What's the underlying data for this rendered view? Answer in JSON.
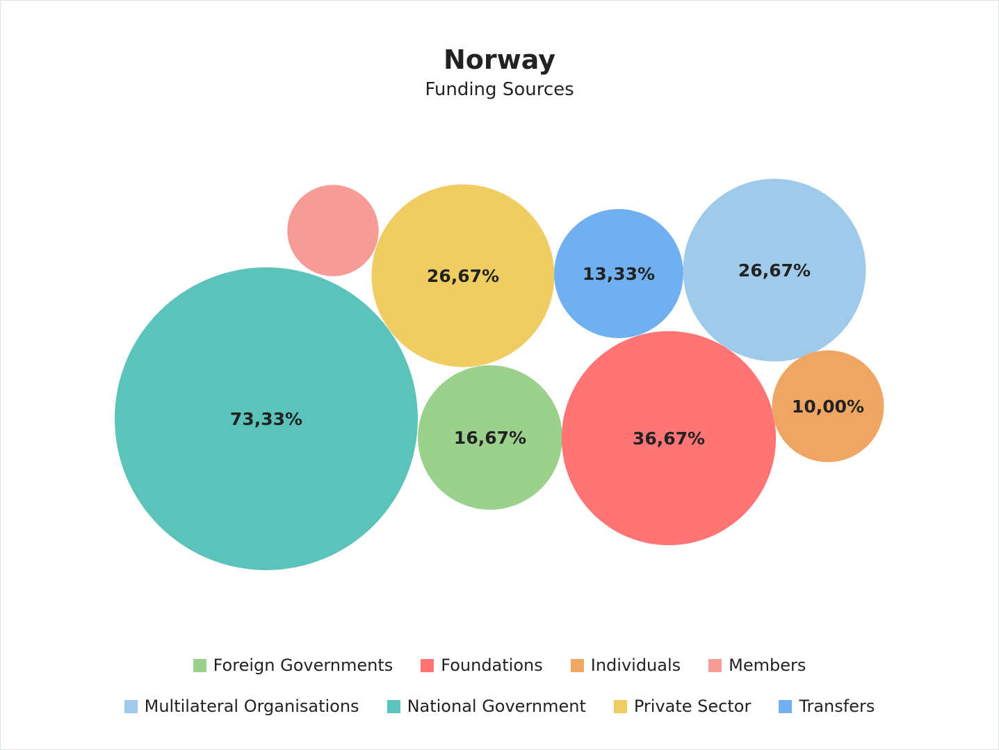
{
  "chart_data": {
    "type": "bubble",
    "title": "Norway",
    "subtitle": "Funding Sources",
    "series": [
      {
        "name": "National Government",
        "value": 73.33,
        "label": "73,33%",
        "color": "#5cc3bb"
      },
      {
        "name": "Private Sector",
        "value": 26.67,
        "label": "26,67%",
        "color": "#f0cd63"
      },
      {
        "name": "Members",
        "value": 6.67,
        "label": "",
        "color": "#f89c98"
      },
      {
        "name": "Transfers",
        "value": 13.33,
        "label": "13,33%",
        "color": "#70b0f0"
      },
      {
        "name": "Multilateral Organisations",
        "value": 26.67,
        "label": "26,67%",
        "color": "#a0cae9"
      },
      {
        "name": "Foreign Governments",
        "value": 16.67,
        "label": "16,67%",
        "color": "#9bd18d"
      },
      {
        "name": "Foundations",
        "value": 36.67,
        "label": "36,67%",
        "color": "#ff7474"
      },
      {
        "name": "Individuals",
        "value": 10.0,
        "label": "10,00%",
        "color": "#f0a663"
      }
    ],
    "legend": {
      "placement": "bottom",
      "rows": [
        [
          "Foreign Governments",
          "Foundations",
          "Individuals",
          "Members"
        ],
        [
          "Multilateral Organisations",
          "National Government",
          "Private Sector",
          "Transfers"
        ]
      ]
    }
  }
}
